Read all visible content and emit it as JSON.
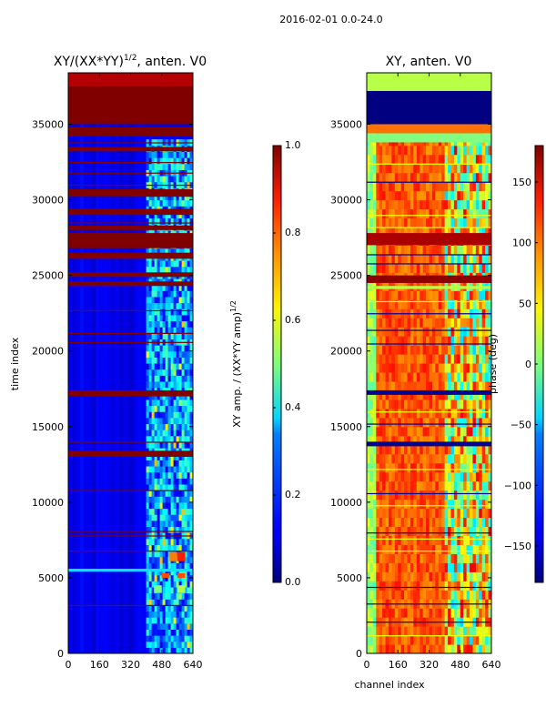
{
  "suptitle": "2016-02-01 0.0-24.0",
  "chart_data": [
    {
      "type": "heatmap",
      "title_main": "XY/(XX*YY)",
      "title_exp": "1/2",
      "title_tail": ", anten. V0",
      "xlabel": "",
      "ylabel": "time index",
      "xlim": [
        0,
        640
      ],
      "ylim": [
        0,
        38400
      ],
      "xticks": [
        "0",
        "160",
        "320",
        "480",
        "640"
      ],
      "yticks": [
        "0",
        "5000",
        "10000",
        "15000",
        "20000",
        "25000",
        "30000",
        "35000"
      ],
      "colormap": "jet",
      "colorbar": {
        "label_main": "XY amp. / (XX*YY amp)",
        "label_exp": "1/2",
        "range": [
          0.0,
          1.0
        ],
        "ticks": [
          "0.0",
          "0.2",
          "0.4",
          "0.6",
          "0.8",
          "1.0"
        ]
      },
      "bands": [
        {
          "y0": 35000,
          "y1": 37500,
          "value": 1.0
        },
        {
          "y0": 37500,
          "y1": 38400,
          "value": 0.95
        },
        {
          "y0": 34200,
          "y1": 34800,
          "value": 1.0
        },
        {
          "y0": 33200,
          "y1": 33500,
          "value": 1.0
        },
        {
          "y0": 30200,
          "y1": 30700,
          "value": 1.0
        },
        {
          "y0": 29000,
          "y1": 29400,
          "value": 1.0
        },
        {
          "y0": 28000,
          "y1": 28300,
          "value": 1.0
        },
        {
          "y0": 26800,
          "y1": 27800,
          "value": 1.0
        },
        {
          "y0": 26100,
          "y1": 26500,
          "value": 1.0
        },
        {
          "y0": 24900,
          "y1": 25200,
          "value": 1.0
        },
        {
          "y0": 24300,
          "y1": 24600,
          "value": 1.0
        },
        {
          "y0": 17000,
          "y1": 17400,
          "value": 1.0
        },
        {
          "y0": 13000,
          "y1": 13400,
          "value": 1.0
        },
        {
          "y0": 5400,
          "y1": 5600,
          "value": 0.35
        }
      ],
      "patches": [
        {
          "x0": 520,
          "x1": 560,
          "y0": 6100,
          "y1": 6700,
          "value": 0.75
        },
        {
          "x0": 560,
          "x1": 600,
          "y0": 6100,
          "y1": 6700,
          "value": 0.85
        },
        {
          "x0": 480,
          "x1": 520,
          "y0": 5000,
          "y1": 5300,
          "value": 0.8
        },
        {
          "x0": 560,
          "x1": 600,
          "y0": 5000,
          "y1": 5300,
          "value": 0.8
        },
        {
          "x0": 440,
          "x1": 480,
          "y0": 4000,
          "y1": 4500,
          "value": 0.5
        },
        {
          "x0": 560,
          "x1": 600,
          "y0": 4000,
          "y1": 4500,
          "value": 0.55
        }
      ],
      "thin_lines": [
        3200,
        6800,
        7800,
        8100,
        10800,
        14000,
        20600,
        21200,
        22700,
        27400,
        28500,
        31000,
        31800,
        32500,
        33800,
        36000,
        38000
      ]
    },
    {
      "type": "heatmap",
      "title_main": "XY, anten. V0",
      "xlabel": "channel index",
      "ylabel": "",
      "xlim": [
        0,
        640
      ],
      "ylim": [
        0,
        38400
      ],
      "xticks": [
        "0",
        "160",
        "320",
        "480",
        "640"
      ],
      "yticks": [
        "0",
        "5000",
        "10000",
        "15000",
        "20000",
        "25000",
        "30000",
        "35000"
      ],
      "colormap": "jet",
      "colorbar": {
        "label_main": "phase (deg)",
        "range": [
          -180,
          180
        ],
        "ticks": [
          "−150",
          "−100",
          "−50",
          "0",
          "50",
          "100",
          "150"
        ],
        "tick_values": [
          -150,
          -100,
          -50,
          0,
          50,
          100,
          150
        ]
      },
      "bands": [
        {
          "y0": 35000,
          "y1": 37200,
          "value": -180
        },
        {
          "y0": 37200,
          "y1": 38400,
          "value": 20
        },
        {
          "y0": 33800,
          "y1": 34400,
          "value": 0
        },
        {
          "y0": 27000,
          "y1": 27800,
          "value": 165
        },
        {
          "y0": 24500,
          "y1": 25000,
          "value": 175
        },
        {
          "y0": 24100,
          "y1": 24300,
          "value": 20
        },
        {
          "y0": 17100,
          "y1": 17400,
          "value": -175
        },
        {
          "y0": 13700,
          "y1": 14000,
          "value": -175
        }
      ],
      "thin_lines": [
        1200,
        2100,
        3300,
        4400,
        6800,
        7600,
        8000,
        9800,
        10600,
        12200,
        15200,
        16000,
        20500,
        21400,
        22500,
        23300,
        25800,
        26400,
        28200,
        29000,
        31200,
        32400
      ]
    }
  ]
}
